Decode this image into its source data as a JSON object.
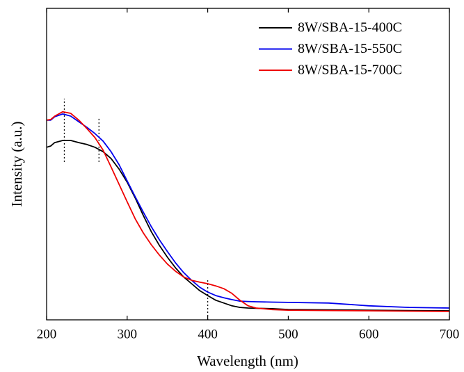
{
  "chart_data": {
    "type": "line",
    "x_label": "Wavelength (nm)",
    "y_label": "Intensity (a.u.)",
    "x": [
      200,
      205,
      210,
      220,
      230,
      240,
      250,
      260,
      270,
      280,
      290,
      300,
      310,
      320,
      330,
      340,
      350,
      360,
      370,
      380,
      390,
      400,
      410,
      420,
      430,
      440,
      450,
      460,
      480,
      500,
      550,
      600,
      650,
      700
    ],
    "series": [
      {
        "name": "8W/SBA-15-400C",
        "color": "#000000",
        "values": [
          55.4,
          55.8,
          56.9,
          57.6,
          57.6,
          56.9,
          56.3,
          55.4,
          54.0,
          51.8,
          48.4,
          44.2,
          39.1,
          33.5,
          28.3,
          23.9,
          20.1,
          16.7,
          13.8,
          11.6,
          9.4,
          7.8,
          6.3,
          5.4,
          4.5,
          4.0,
          3.8,
          3.7,
          3.6,
          3.3,
          3.2,
          3.1,
          3.0,
          2.9
        ]
      },
      {
        "name": "8W/SBA-15-550C",
        "color": "#0000ee",
        "values": [
          64.1,
          64.1,
          65.2,
          66.1,
          65.4,
          63.6,
          61.8,
          59.8,
          57.4,
          54.0,
          49.8,
          44.6,
          39.5,
          34.6,
          29.9,
          25.7,
          21.9,
          18.3,
          15.2,
          12.7,
          10.5,
          8.9,
          7.8,
          7.1,
          6.5,
          6.0,
          5.9,
          5.8,
          5.7,
          5.6,
          5.4,
          4.5,
          4.0,
          3.8
        ]
      },
      {
        "name": "8W/SBA-15-700C",
        "color": "#ee0000",
        "values": [
          64.1,
          64.3,
          65.4,
          66.8,
          66.3,
          64.1,
          61.4,
          58.5,
          54.5,
          49.1,
          43.5,
          37.9,
          32.4,
          27.9,
          24.1,
          20.8,
          17.9,
          15.6,
          13.8,
          12.7,
          12.1,
          11.6,
          10.9,
          10.0,
          8.5,
          6.3,
          4.5,
          3.8,
          3.3,
          3.1,
          3.0,
          2.9,
          2.8,
          2.7
        ]
      }
    ],
    "reference_lines": [
      {
        "x": 222,
        "y": [
          50.7,
          71.0
        ]
      },
      {
        "x": 265,
        "y": [
          50.7,
          65.2
        ]
      },
      {
        "x": 400,
        "y": [
          0,
          12.7
        ]
      }
    ],
    "xlim": [
      200,
      700
    ],
    "xticks": [
      200,
      300,
      400,
      500,
      600,
      700
    ],
    "ylim": [
      0,
      100
    ],
    "legend": "upper right"
  }
}
